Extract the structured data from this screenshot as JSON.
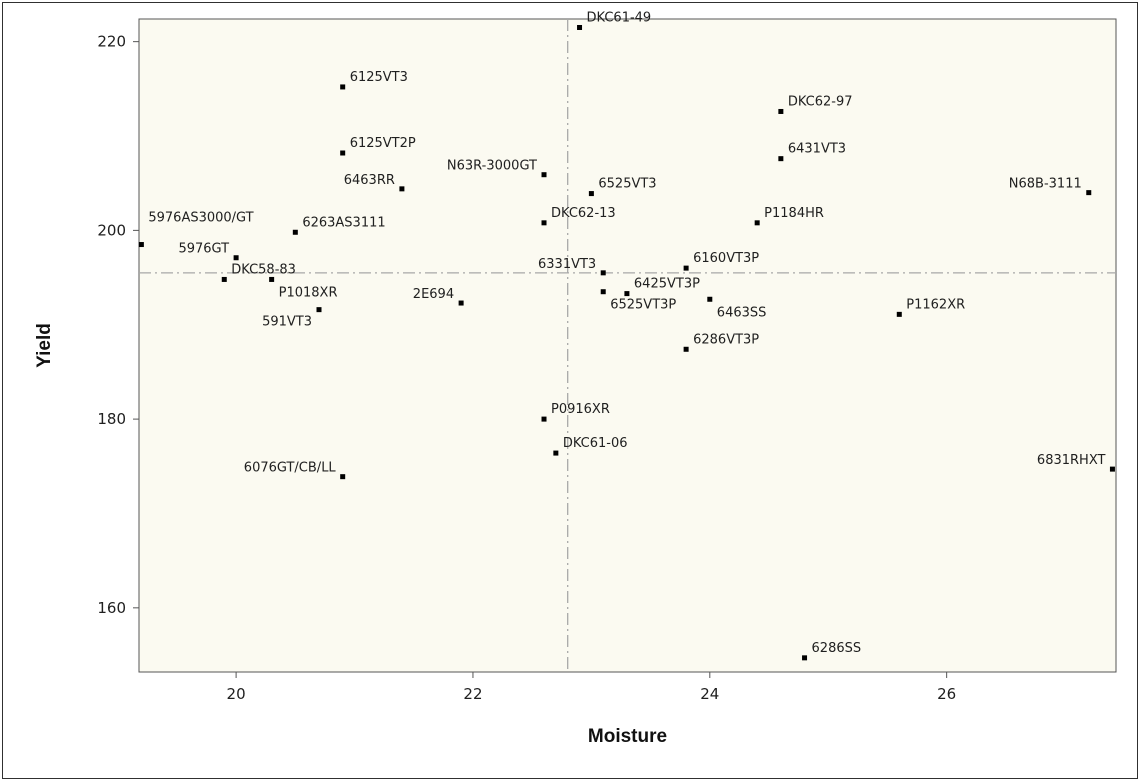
{
  "chart_data": {
    "type": "scatter",
    "title": "",
    "xlabel": "Moisture",
    "ylabel": "Yield",
    "xlim": [
      19.2,
      27.4
    ],
    "ylim": [
      154,
      222
    ],
    "xticks": [
      20,
      22,
      24,
      26
    ],
    "yticks": [
      160,
      180,
      200,
      220
    ],
    "reference_lines": {
      "x": 22.8,
      "y": 195.5,
      "style": "dash-dot"
    },
    "grid": false,
    "legend": "none",
    "colors": {
      "plot_background": "#fbfaf1",
      "point": "#000000",
      "reference_line": "#a8a8a8"
    },
    "points": [
      {
        "label": "DKC61-49",
        "x": 22.9,
        "y": 221.5,
        "label_pos": "right"
      },
      {
        "label": "6125VT3",
        "x": 20.9,
        "y": 215.2,
        "label_pos": "right"
      },
      {
        "label": "DKC62-97",
        "x": 24.6,
        "y": 212.6,
        "label_pos": "right"
      },
      {
        "label": "6125VT2P",
        "x": 20.9,
        "y": 208.2,
        "label_pos": "right"
      },
      {
        "label": "6431VT3",
        "x": 24.6,
        "y": 207.6,
        "label_pos": "right"
      },
      {
        "label": "N63R-3000GT",
        "x": 22.6,
        "y": 205.9,
        "label_pos": "left"
      },
      {
        "label": "6463RR",
        "x": 21.4,
        "y": 204.4,
        "label_pos": "left"
      },
      {
        "label": "6525VT3",
        "x": 23.0,
        "y": 203.9,
        "label_pos": "right"
      },
      {
        "label": "N68B-3111",
        "x": 27.2,
        "y": 204.0,
        "label_pos": "left"
      },
      {
        "label": "DKC62-13",
        "x": 22.6,
        "y": 200.8,
        "label_pos": "right"
      },
      {
        "label": "P1184HR",
        "x": 24.4,
        "y": 200.8,
        "label_pos": "right"
      },
      {
        "label": "6263AS3111",
        "x": 20.5,
        "y": 199.8,
        "label_pos": "right"
      },
      {
        "label": "5976AS3000/GT",
        "x": 19.2,
        "y": 198.5,
        "label_pos": "right-above"
      },
      {
        "label": "5976GT",
        "x": 20.0,
        "y": 197.1,
        "label_pos": "left"
      },
      {
        "label": "6160VT3P",
        "x": 23.8,
        "y": 196.0,
        "label_pos": "right"
      },
      {
        "label": "6331VT3",
        "x": 23.1,
        "y": 195.5,
        "label_pos": "left"
      },
      {
        "label": "DKC58-83",
        "x": 19.9,
        "y": 194.8,
        "label_pos": "right"
      },
      {
        "label": "P1018XR",
        "x": 20.3,
        "y": 194.8,
        "label_pos": "right-below"
      },
      {
        "label": "6425VT3P",
        "x": 23.3,
        "y": 193.3,
        "label_pos": "right"
      },
      {
        "label": "6525VT3P",
        "x": 23.1,
        "y": 193.5,
        "label_pos": "right-below"
      },
      {
        "label": "6463SS",
        "x": 24.0,
        "y": 192.7,
        "label_pos": "right-below"
      },
      {
        "label": "2E694",
        "x": 21.9,
        "y": 192.3,
        "label_pos": "left"
      },
      {
        "label": "591VT3",
        "x": 20.7,
        "y": 191.6,
        "label_pos": "left-below"
      },
      {
        "label": "P1162XR",
        "x": 25.6,
        "y": 191.1,
        "label_pos": "right"
      },
      {
        "label": "6286VT3P",
        "x": 23.8,
        "y": 187.4,
        "label_pos": "right"
      },
      {
        "label": "P0916XR",
        "x": 22.6,
        "y": 180.0,
        "label_pos": "right"
      },
      {
        "label": "DKC61-06",
        "x": 22.7,
        "y": 176.4,
        "label_pos": "right"
      },
      {
        "label": "6076GT/CB/LL",
        "x": 20.9,
        "y": 173.9,
        "label_pos": "left"
      },
      {
        "label": "6831RHXT",
        "x": 27.4,
        "y": 174.7,
        "label_pos": "left"
      },
      {
        "label": "6286SS",
        "x": 24.8,
        "y": 154.7,
        "label_pos": "right"
      }
    ]
  }
}
